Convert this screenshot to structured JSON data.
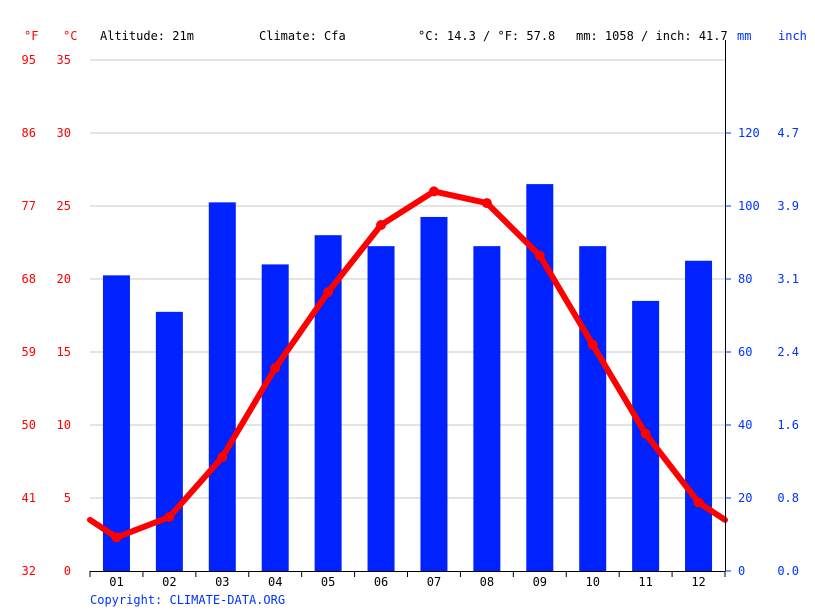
{
  "header": {
    "unit_f": "°F",
    "unit_c": "°C",
    "altitude": "Altitude: 21m",
    "climate": "Climate: Cfa",
    "avg_temp": "°C: 14.3 / °F: 57.8",
    "precip": "mm: 1058 / inch: 41.7",
    "unit_mm": "mm",
    "unit_inch": "inch"
  },
  "axes": {
    "fahrenheit_ticks": [
      "32",
      "41",
      "50",
      "59",
      "68",
      "77",
      "86",
      "95"
    ],
    "celsius_ticks": [
      "0",
      "5",
      "10",
      "15",
      "20",
      "25",
      "30",
      "35"
    ],
    "mm_ticks": [
      "0",
      "20",
      "40",
      "60",
      "80",
      "100",
      "120"
    ],
    "inch_ticks": [
      "0.0",
      "0.8",
      "1.6",
      "2.4",
      "3.1",
      "3.9",
      "4.7"
    ]
  },
  "copyright": "Copyright: CLIMATE-DATA.ORG",
  "colors": {
    "temperature": "#ff0000",
    "precipitation": "#0022ff",
    "grid": "#c8c8c8",
    "axis_text_blue": "#0033ff"
  },
  "chart_data": {
    "type": "bar",
    "categories": [
      "01",
      "02",
      "03",
      "04",
      "05",
      "06",
      "07",
      "08",
      "09",
      "10",
      "11",
      "12"
    ],
    "series": [
      {
        "type": "bar",
        "axis": "right",
        "values": [
          81,
          71,
          101,
          84,
          92,
          89,
          97,
          89,
          106,
          89,
          74,
          85
        ]
      },
      {
        "type": "line",
        "axis": "left",
        "values": [
          2.3,
          3.7,
          7.8,
          13.9,
          19.1,
          23.7,
          26.0,
          25.2,
          21.6,
          15.5,
          9.4,
          4.7
        ]
      }
    ],
    "ylim_left": [
      0,
      35
    ],
    "ylim_right": [
      0,
      140
    ],
    "grid": true,
    "legend": "none"
  }
}
